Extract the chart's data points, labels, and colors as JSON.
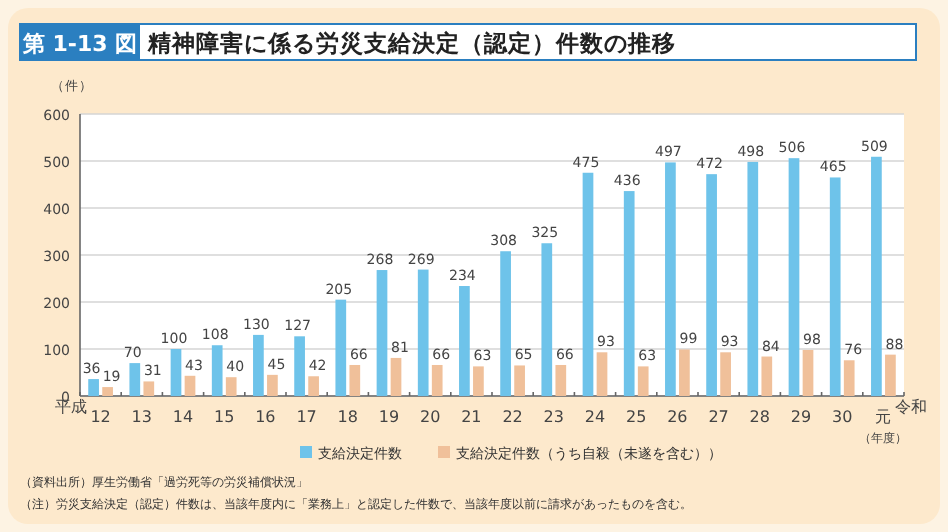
{
  "chart_data": {
    "type": "bar",
    "title": "精神障害に係る労災支給決定（認定）件数の推移",
    "ylabel": "（件）",
    "xlabel": "（年度）",
    "categories": [
      "12",
      "13",
      "14",
      "15",
      "16",
      "17",
      "18",
      "19",
      "20",
      "21",
      "22",
      "23",
      "24",
      "25",
      "26",
      "27",
      "28",
      "29",
      "30",
      "元"
    ],
    "series": [
      {
        "name": "支給決定件数",
        "color": "#6ec3ea",
        "values": [
          36,
          70,
          100,
          108,
          130,
          127,
          205,
          268,
          269,
          234,
          308,
          325,
          475,
          436,
          497,
          472,
          498,
          506,
          465,
          509
        ]
      },
      {
        "name": "支給決定件数（うち自殺（未遂を含む））",
        "color": "#f0c09a",
        "values": [
          19,
          31,
          43,
          40,
          45,
          42,
          66,
          81,
          66,
          63,
          65,
          66,
          93,
          63,
          99,
          93,
          84,
          98,
          76,
          88
        ]
      }
    ],
    "ylim": [
      0,
      600
    ],
    "yticks": [
      0,
      100,
      200,
      300,
      400,
      500,
      600
    ],
    "grid": "y",
    "legend": "bottom",
    "data_labels": true,
    "annotations": [
      "第 1-13 図",
      {
        "text": "平成",
        "x": "12",
        "y": 0
      },
      {
        "text": "令和",
        "x": "元",
        "y": 0
      },
      "（資料出所）厚生労働省「過労死等の労災補償状況」",
      "（注）労災支給決定（認定）件数は、当該年度内に「業務上」と認定した件数で、当該年度以前に請求があったものを含む。"
    ]
  }
}
